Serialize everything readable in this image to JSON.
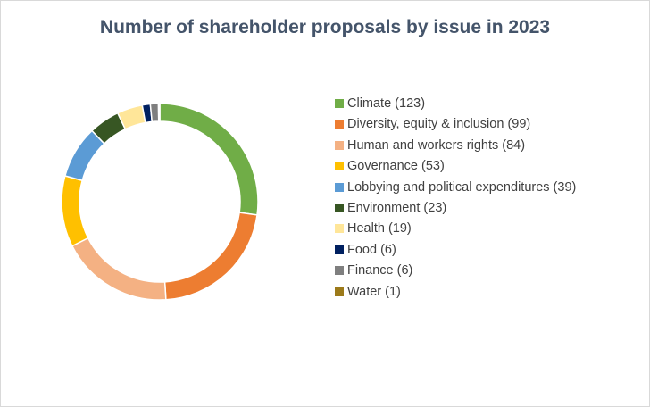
{
  "chart_data": {
    "type": "pie",
    "style": "donut",
    "title": "Number of shareholder proposals by issue in 2023",
    "legend_position": "right",
    "series": [
      {
        "label": "Climate (123)",
        "value": 123,
        "color": "#70ad47"
      },
      {
        "label": "Diversity, equity & inclusion (99)",
        "value": 99,
        "color": "#ed7d31"
      },
      {
        "label": "Human and workers rights (84)",
        "value": 84,
        "color": "#f4b183"
      },
      {
        "label": "Governance (53)",
        "value": 53,
        "color": "#ffc000"
      },
      {
        "label": "Lobbying and political expenditures (39)",
        "value": 39,
        "color": "#5b9bd5"
      },
      {
        "label": "Environment (23)",
        "value": 23,
        "color": "#375623"
      },
      {
        "label": "Health (19)",
        "value": 19,
        "color": "#ffe699"
      },
      {
        "label": "Food (6)",
        "value": 6,
        "color": "#002060"
      },
      {
        "label": "Finance (6)",
        "value": 6,
        "color": "#7f7f7f"
      },
      {
        "label": "Water (1)",
        "value": 1,
        "color": "#9c7a1a"
      }
    ]
  }
}
